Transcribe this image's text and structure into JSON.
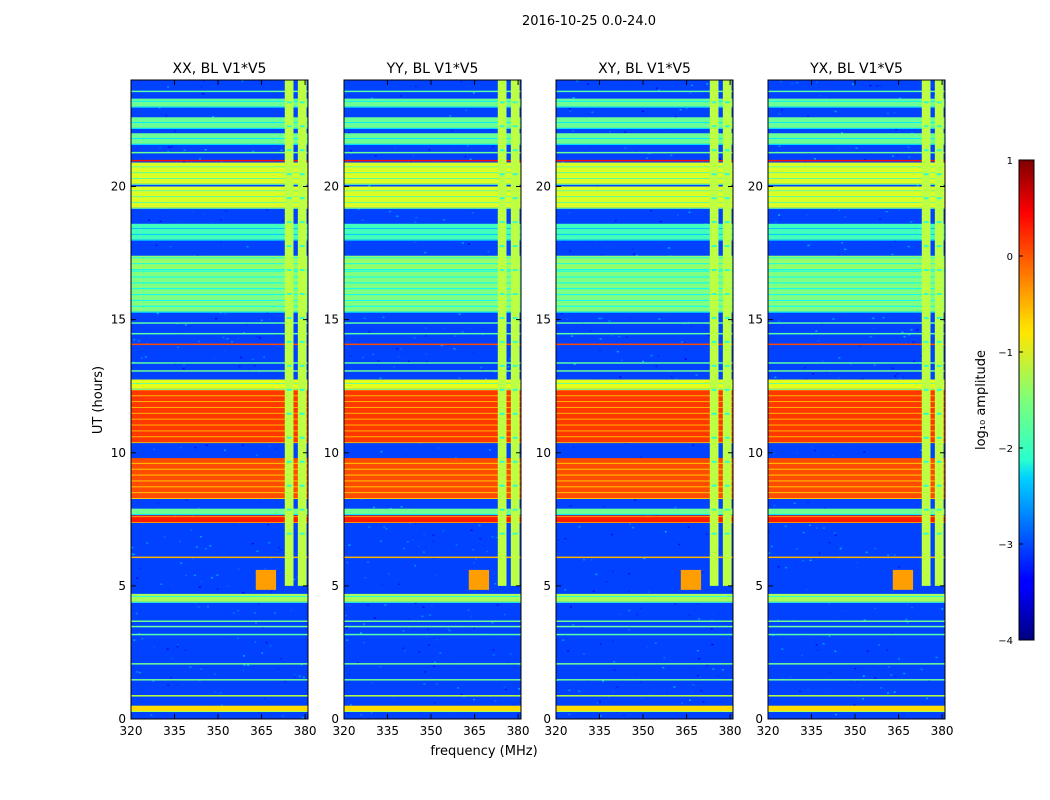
{
  "chart_data": {
    "type": "heatmap",
    "title": "2016-10-25 0.0-24.0",
    "xlabel": "frequency (MHz)",
    "ylabel": "UT (hours)",
    "xlim": [
      320,
      381
    ],
    "ylim": [
      0,
      24
    ],
    "xticks": [
      "320",
      "335",
      "350",
      "365",
      "380"
    ],
    "yticks": [
      "0",
      "5",
      "10",
      "15",
      "20"
    ],
    "panels": [
      {
        "title": "XX, BL V1*V5"
      },
      {
        "title": "YY, BL V1*V5"
      },
      {
        "title": "XY, BL V1*V5"
      },
      {
        "title": "YX, BL V1*V5"
      }
    ],
    "colorbar": {
      "label": "log₁₀ amplitude",
      "min": -4,
      "max": 1,
      "ticks": [
        "−4",
        "−3",
        "−2",
        "−1",
        "0",
        "1"
      ],
      "colormap": "jet"
    },
    "bands": [
      {
        "y0": 0.3,
        "y1": 0.5,
        "value": -0.7
      },
      {
        "y0": 4.4,
        "y1": 4.7,
        "value": -1.3
      },
      {
        "y0": 7.4,
        "y1": 7.65,
        "value": 0.25
      },
      {
        "y0": 7.7,
        "y1": 7.9,
        "value": -1.6
      },
      {
        "y0": 8.3,
        "y1": 9.8,
        "value": 0.0
      },
      {
        "y0": 10.4,
        "y1": 12.4,
        "value": 0.1
      },
      {
        "y0": 12.4,
        "y1": 12.75,
        "value": -1.0
      },
      {
        "y0": 15.3,
        "y1": 16.9,
        "value": -1.5
      },
      {
        "y0": 16.9,
        "y1": 17.4,
        "value": -1.4
      },
      {
        "y0": 18.0,
        "y1": 18.6,
        "value": -1.8
      },
      {
        "y0": 19.2,
        "y1": 20.0,
        "value": -1.05
      },
      {
        "y0": 20.1,
        "y1": 20.9,
        "value": -1.05
      },
      {
        "y0": 21.6,
        "y1": 22.0,
        "value": -1.6
      },
      {
        "y0": 22.2,
        "y1": 22.6,
        "value": -1.6
      },
      {
        "y0": 23.0,
        "y1": 23.3,
        "value": -1.6
      }
    ],
    "lines": [
      {
        "y": 0.9,
        "value": -1.2
      },
      {
        "y": 1.5,
        "value": -1.6
      },
      {
        "y": 2.1,
        "value": -1.6
      },
      {
        "y": 3.2,
        "value": -1.7
      },
      {
        "y": 3.5,
        "value": -1.6
      },
      {
        "y": 3.7,
        "value": -1.6
      },
      {
        "y": 6.1,
        "value": -0.5
      },
      {
        "y": 13.1,
        "value": -1.6
      },
      {
        "y": 13.4,
        "value": -1.7
      },
      {
        "y": 14.1,
        "value": 0.0
      },
      {
        "y": 14.5,
        "value": -1.7
      },
      {
        "y": 14.9,
        "value": -1.7
      },
      {
        "y": 21.0,
        "value": 0.3
      },
      {
        "y": 21.3,
        "value": -1.6
      },
      {
        "y": 23.6,
        "value": -1.7
      }
    ],
    "columns": [
      {
        "x0": 373,
        "x1": 376,
        "y0": 5.0,
        "y1": 24,
        "value": -1.2
      },
      {
        "x0": 377.5,
        "x1": 380.5,
        "y0": 5.0,
        "y1": 24,
        "value": -1.2
      },
      {
        "x0": 363,
        "x1": 370,
        "y0": 4.85,
        "y1": 5.6,
        "value": -0.4
      }
    ]
  }
}
